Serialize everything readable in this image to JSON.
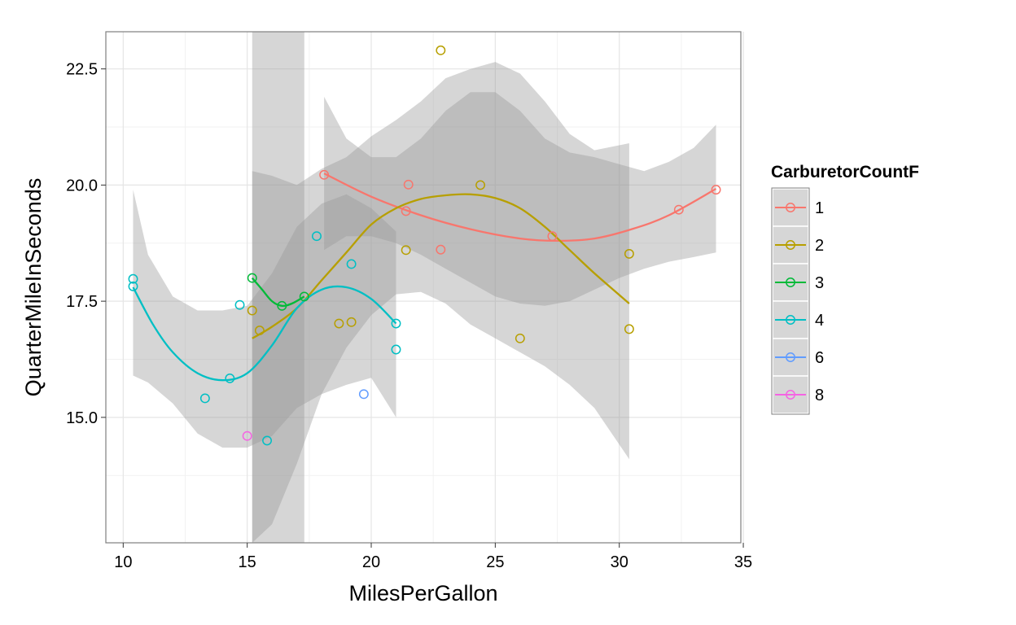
{
  "chart_data": {
    "type": "scatter",
    "xlabel": "MilesPerGallon",
    "ylabel": "QuarterMileInSeconds",
    "xlim": [
      9.3,
      34.9
    ],
    "ylim": [
      12.3,
      23.3
    ],
    "xticks": [
      10,
      15,
      20,
      25,
      30,
      35
    ],
    "yticks": [
      15.0,
      17.5,
      20.0,
      22.5
    ],
    "xtick_labels": [
      "10",
      "15",
      "20",
      "25",
      "30",
      "35"
    ],
    "ytick_labels": [
      "15.0",
      "17.5",
      "20.0",
      "22.5"
    ],
    "grid": true,
    "legend": {
      "title": "CarburetorCountF",
      "placement": "right",
      "entries": [
        "1",
        "2",
        "3",
        "4",
        "6",
        "8"
      ]
    },
    "series": [
      {
        "name": "1",
        "color": "#F8766D",
        "points": [
          [
            18.1,
            20.22
          ],
          [
            21.4,
            19.44
          ],
          [
            21.5,
            20.01
          ],
          [
            22.8,
            18.61
          ],
          [
            27.3,
            18.9
          ],
          [
            32.4,
            19.47
          ],
          [
            33.9,
            19.9
          ]
        ],
        "smooth": [
          [
            18.1,
            20.25
          ],
          [
            20,
            19.75
          ],
          [
            22,
            19.35
          ],
          [
            24,
            19.05
          ],
          [
            26,
            18.85
          ],
          [
            27.5,
            18.8
          ],
          [
            29,
            18.85
          ],
          [
            30.5,
            19.05
          ],
          [
            32,
            19.35
          ],
          [
            33.9,
            19.92
          ]
        ],
        "band_lower": [
          [
            18.1,
            18.6
          ],
          [
            19,
            18.9
          ],
          [
            20,
            18.9
          ],
          [
            21,
            18.75
          ],
          [
            22,
            18.5
          ],
          [
            23,
            18.2
          ],
          [
            24,
            17.9
          ],
          [
            25,
            17.6
          ],
          [
            26,
            17.45
          ],
          [
            27,
            17.4
          ],
          [
            28,
            17.5
          ],
          [
            29,
            17.75
          ],
          [
            30,
            18.0
          ],
          [
            31,
            18.2
          ],
          [
            32,
            18.35
          ],
          [
            33,
            18.45
          ],
          [
            33.9,
            18.55
          ]
        ],
        "band_upper": [
          [
            18.1,
            21.9
          ],
          [
            18.5,
            21.5
          ],
          [
            19,
            21.0
          ],
          [
            20,
            20.6
          ],
          [
            21,
            20.6
          ],
          [
            22,
            21.0
          ],
          [
            23,
            21.6
          ],
          [
            24,
            22.0
          ],
          [
            25,
            22.0
          ],
          [
            26,
            21.6
          ],
          [
            27,
            21.0
          ],
          [
            28,
            20.7
          ],
          [
            29,
            20.6
          ],
          [
            30,
            20.45
          ],
          [
            31,
            20.3
          ],
          [
            32,
            20.5
          ],
          [
            33,
            20.8
          ],
          [
            33.9,
            21.3
          ]
        ]
      },
      {
        "name": "2",
        "color": "#B79F00",
        "points": [
          [
            15.2,
            17.3
          ],
          [
            15.5,
            16.87
          ],
          [
            18.7,
            17.02
          ],
          [
            19.2,
            17.05
          ],
          [
            21.4,
            18.6
          ],
          [
            22.8,
            22.9
          ],
          [
            24.4,
            20.0
          ],
          [
            26.0,
            16.7
          ],
          [
            30.4,
            16.9
          ],
          [
            30.4,
            18.52
          ]
        ],
        "smooth": [
          [
            15.2,
            16.7
          ],
          [
            16,
            16.95
          ],
          [
            17,
            17.35
          ],
          [
            18,
            17.95
          ],
          [
            19,
            18.55
          ],
          [
            20,
            19.15
          ],
          [
            21,
            19.5
          ],
          [
            22,
            19.7
          ],
          [
            23,
            19.78
          ],
          [
            24,
            19.8
          ],
          [
            25,
            19.72
          ],
          [
            26,
            19.5
          ],
          [
            27,
            19.1
          ],
          [
            28,
            18.6
          ],
          [
            29,
            18.1
          ],
          [
            30.4,
            17.45
          ]
        ],
        "band_lower": [
          [
            15.2,
            12.3
          ],
          [
            16,
            12.7
          ],
          [
            17,
            14.0
          ],
          [
            18,
            15.5
          ],
          [
            19,
            16.5
          ],
          [
            20,
            17.2
          ],
          [
            21,
            17.65
          ],
          [
            22,
            17.7
          ],
          [
            23,
            17.45
          ],
          [
            24,
            17.0
          ],
          [
            25,
            16.7
          ],
          [
            26,
            16.4
          ],
          [
            27,
            16.1
          ],
          [
            28,
            15.7
          ],
          [
            29,
            15.2
          ],
          [
            30.4,
            14.1
          ]
        ],
        "band_upper": [
          [
            15.2,
            20.3
          ],
          [
            16,
            20.2
          ],
          [
            17,
            20.0
          ],
          [
            18,
            20.35
          ],
          [
            19,
            20.6
          ],
          [
            20,
            21.05
          ],
          [
            21,
            21.4
          ],
          [
            22,
            21.8
          ],
          [
            23,
            22.3
          ],
          [
            24,
            22.5
          ],
          [
            25,
            22.65
          ],
          [
            26,
            22.4
          ],
          [
            27,
            21.8
          ],
          [
            28,
            21.1
          ],
          [
            29,
            20.75
          ],
          [
            30.4,
            20.9
          ]
        ]
      },
      {
        "name": "3",
        "color": "#00BA38",
        "points": [
          [
            15.2,
            18.0
          ],
          [
            16.4,
            17.4
          ],
          [
            17.3,
            17.6
          ]
        ],
        "smooth": [
          [
            15.2,
            18.0
          ],
          [
            15.6,
            17.75
          ],
          [
            16.0,
            17.5
          ],
          [
            16.4,
            17.4
          ],
          [
            16.8,
            17.45
          ],
          [
            17.3,
            17.6
          ]
        ],
        "band_lower": [
          [
            15.2,
            12.3
          ],
          [
            17.3,
            12.3
          ]
        ],
        "band_upper": [
          [
            15.2,
            23.3
          ],
          [
            17.3,
            23.3
          ]
        ]
      },
      {
        "name": "4",
        "color": "#00BFC4",
        "points": [
          [
            10.4,
            17.98
          ],
          [
            10.4,
            17.82
          ],
          [
            13.3,
            15.41
          ],
          [
            14.3,
            15.84
          ],
          [
            14.7,
            17.42
          ],
          [
            15.8,
            14.5
          ],
          [
            17.8,
            18.9
          ],
          [
            19.2,
            18.3
          ],
          [
            21.0,
            16.46
          ],
          [
            21.0,
            17.02
          ]
        ],
        "smooth": [
          [
            10.4,
            17.8
          ],
          [
            11.2,
            17.0
          ],
          [
            12,
            16.4
          ],
          [
            13,
            15.95
          ],
          [
            14,
            15.8
          ],
          [
            15,
            15.95
          ],
          [
            16,
            16.55
          ],
          [
            17,
            17.35
          ],
          [
            18,
            17.75
          ],
          [
            19,
            17.8
          ],
          [
            20,
            17.55
          ],
          [
            21,
            17.02
          ]
        ],
        "band_lower": [
          [
            10.4,
            15.9
          ],
          [
            11,
            15.75
          ],
          [
            12,
            15.3
          ],
          [
            13,
            14.65
          ],
          [
            14,
            14.35
          ],
          [
            15,
            14.35
          ],
          [
            16,
            14.6
          ],
          [
            17,
            15.2
          ],
          [
            18,
            15.5
          ],
          [
            19,
            15.7
          ],
          [
            20,
            15.85
          ],
          [
            21,
            15.0
          ]
        ],
        "band_upper": [
          [
            10.4,
            19.9
          ],
          [
            11,
            18.5
          ],
          [
            12,
            17.6
          ],
          [
            13,
            17.3
          ],
          [
            14,
            17.3
          ],
          [
            15,
            17.4
          ],
          [
            16,
            18.1
          ],
          [
            17,
            19.1
          ],
          [
            18,
            19.6
          ],
          [
            19,
            19.8
          ],
          [
            20,
            19.5
          ],
          [
            21,
            19.0
          ]
        ]
      },
      {
        "name": "6",
        "color": "#619CFF",
        "points": [
          [
            19.7,
            15.5
          ]
        ]
      },
      {
        "name": "8",
        "color": "#F564E3",
        "points": [
          [
            15.0,
            14.6
          ]
        ]
      }
    ]
  }
}
